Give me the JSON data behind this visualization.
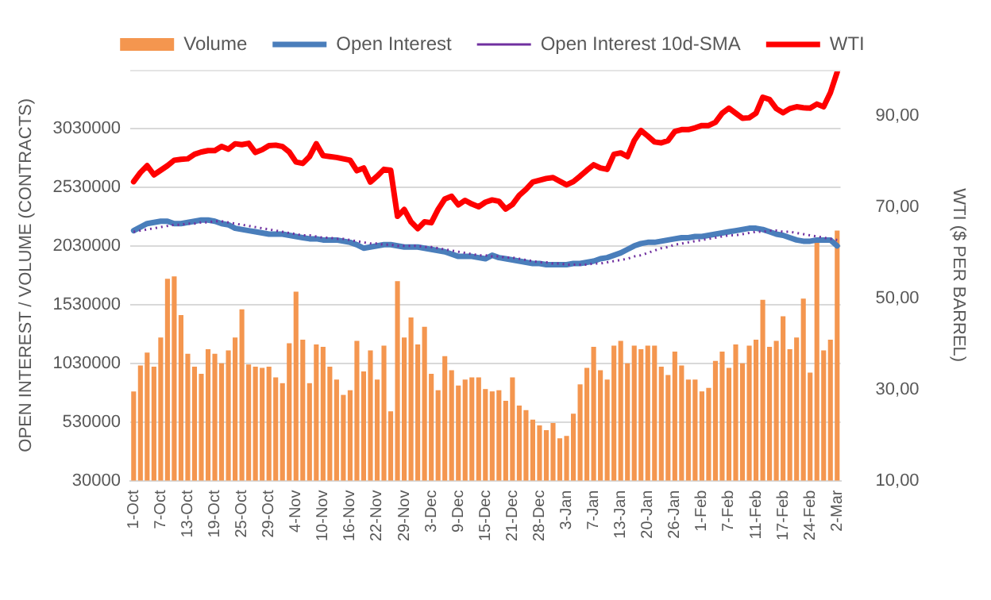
{
  "chart_data": {
    "type": "bar",
    "categories": [
      "1-Oct",
      null,
      null,
      null,
      "7-Oct",
      null,
      null,
      null,
      "13-Oct",
      null,
      null,
      null,
      "19-Oct",
      null,
      null,
      null,
      "25-Oct",
      null,
      null,
      null,
      "29-Oct",
      null,
      null,
      null,
      "4-Nov",
      null,
      null,
      null,
      "10-Nov",
      null,
      null,
      null,
      "16-Nov",
      null,
      null,
      null,
      "22-Nov",
      null,
      null,
      null,
      "29-Nov",
      null,
      null,
      null,
      "3-Dec",
      null,
      null,
      null,
      "9-Dec",
      null,
      null,
      null,
      "15-Dec",
      null,
      null,
      null,
      "21-Dec",
      null,
      null,
      null,
      "28-Dec",
      null,
      null,
      null,
      "3-Jan",
      null,
      null,
      null,
      "7-Jan",
      null,
      null,
      null,
      "13-Jan",
      null,
      null,
      null,
      "20-Jan",
      null,
      null,
      null,
      "26-Jan",
      null,
      null,
      null,
      "1-Feb",
      null,
      null,
      null,
      "7-Feb",
      null,
      null,
      null,
      "11-Feb",
      null,
      null,
      null,
      "17-Feb",
      null,
      null,
      null,
      "24-Feb",
      null,
      null,
      null,
      "2-Mar"
    ],
    "series": [
      {
        "name": "Volume",
        "color": "#f4964f",
        "values": [
          790000,
          1010000,
          1120000,
          1000000,
          1250000,
          1750000,
          1770000,
          1440000,
          1110000,
          1000000,
          940000,
          1150000,
          1110000,
          1030000,
          1140000,
          1250000,
          1490000,
          1020000,
          1000000,
          990000,
          1000000,
          910000,
          860000,
          1200000,
          1640000,
          1230000,
          860000,
          1190000,
          1170000,
          1000000,
          890000,
          760000,
          800000,
          1220000,
          960000,
          1140000,
          890000,
          1180000,
          620000,
          1730000,
          1250000,
          1420000,
          1190000,
          1340000,
          940000,
          800000,
          1090000,
          970000,
          840000,
          890000,
          910000,
          910000,
          810000,
          790000,
          800000,
          710000,
          910000,
          670000,
          630000,
          550000,
          500000,
          460000,
          520000,
          390000,
          410000,
          600000,
          850000,
          990000,
          1170000,
          970000,
          890000,
          1180000,
          1220000,
          1030000,
          1180000,
          1150000,
          1180000,
          1180000,
          1000000,
          930000,
          1130000,
          1010000,
          890000,
          890000,
          790000,
          820000,
          1050000,
          1130000,
          990000,
          1190000,
          1030000,
          1180000,
          1230000,
          1570000,
          1170000,
          1220000,
          1430000,
          1150000,
          1250000,
          1580000,
          950000,
          2080000,
          1140000,
          1230000,
          2160000
        ]
      },
      {
        "name": "Open Interest",
        "type": "line",
        "color": "#4a7ebb",
        "values": [
          2160000,
          2190000,
          2220000,
          2230000,
          2240000,
          2240000,
          2220000,
          2220000,
          2230000,
          2240000,
          2250000,
          2250000,
          2240000,
          2220000,
          2210000,
          2180000,
          2170000,
          2160000,
          2150000,
          2140000,
          2130000,
          2130000,
          2130000,
          2120000,
          2110000,
          2100000,
          2090000,
          2090000,
          2080000,
          2080000,
          2080000,
          2070000,
          2060000,
          2040000,
          2010000,
          2020000,
          2030000,
          2040000,
          2040000,
          2030000,
          2020000,
          2020000,
          2020000,
          2010000,
          2000000,
          1990000,
          1980000,
          1960000,
          1940000,
          1940000,
          1940000,
          1930000,
          1920000,
          1950000,
          1930000,
          1920000,
          1910000,
          1900000,
          1890000,
          1880000,
          1880000,
          1870000,
          1870000,
          1870000,
          1870000,
          1880000,
          1880000,
          1890000,
          1900000,
          1920000,
          1930000,
          1950000,
          1970000,
          2000000,
          2030000,
          2050000,
          2060000,
          2060000,
          2070000,
          2080000,
          2090000,
          2100000,
          2100000,
          2110000,
          2110000,
          2120000,
          2130000,
          2140000,
          2150000,
          2160000,
          2170000,
          2180000,
          2180000,
          2170000,
          2150000,
          2130000,
          2120000,
          2100000,
          2080000,
          2070000,
          2070000,
          2080000,
          2080000,
          2080000,
          2030000
        ]
      },
      {
        "name": "Open Interest 10d-SMA",
        "type": "line",
        "line_style": "dotted",
        "color": "#7030a0",
        "values": [
          2150000,
          2160000,
          2170000,
          2180000,
          2190000,
          2200000,
          2210000,
          2210000,
          2220000,
          2220000,
          2230000,
          2230000,
          2240000,
          2240000,
          2230000,
          2220000,
          2210000,
          2200000,
          2190000,
          2180000,
          2170000,
          2160000,
          2150000,
          2140000,
          2130000,
          2120000,
          2120000,
          2110000,
          2100000,
          2100000,
          2090000,
          2090000,
          2080000,
          2070000,
          2060000,
          2050000,
          2050000,
          2040000,
          2040000,
          2030000,
          2030000,
          2030000,
          2030000,
          2020000,
          2020000,
          2010000,
          2000000,
          1990000,
          1980000,
          1970000,
          1960000,
          1950000,
          1950000,
          1940000,
          1940000,
          1930000,
          1930000,
          1920000,
          1910000,
          1900000,
          1890000,
          1890000,
          1880000,
          1880000,
          1870000,
          1870000,
          1870000,
          1870000,
          1880000,
          1880000,
          1890000,
          1900000,
          1910000,
          1920000,
          1940000,
          1950000,
          1970000,
          1990000,
          2010000,
          2020000,
          2040000,
          2050000,
          2060000,
          2070000,
          2080000,
          2090000,
          2100000,
          2110000,
          2120000,
          2120000,
          2130000,
          2140000,
          2150000,
          2150000,
          2160000,
          2160000,
          2150000,
          2150000,
          2140000,
          2130000,
          2120000,
          2110000,
          2100000,
          2090000,
          2080000
        ]
      },
      {
        "name": "WTI",
        "type": "line",
        "axis": "y2",
        "color": "#ff0000",
        "values": [
          75.5,
          77.5,
          79,
          77,
          78,
          79,
          80.2,
          80.4,
          80.5,
          81.5,
          82,
          82.3,
          82.3,
          83.2,
          82.6,
          83.8,
          83.6,
          83.9,
          81.9,
          82.5,
          83.4,
          83.5,
          83.2,
          82,
          79.8,
          79.5,
          81,
          83.8,
          81.2,
          81,
          80.8,
          80.5,
          80.2,
          77.9,
          78.5,
          75.4,
          76.7,
          78.2,
          78,
          67.9,
          69.4,
          66.7,
          65.2,
          66.7,
          66.5,
          69.4,
          71.7,
          72.3,
          70.4,
          71.4,
          70.6,
          70,
          71,
          71.5,
          71.2,
          69.5,
          70.5,
          72.5,
          73.8,
          75.4,
          75.8,
          76.2,
          76.4,
          75.6,
          74.8,
          75.5,
          76.7,
          78,
          79.2,
          78.5,
          78.2,
          81.5,
          81.8,
          81,
          84.5,
          86.7,
          85.5,
          84.2,
          84,
          84.5,
          86.5,
          86.9,
          86.9,
          87.3,
          87.8,
          87.8,
          88.5,
          90.5,
          91.6,
          90.5,
          89.4,
          89.5,
          90.5,
          94,
          93.5,
          91.5,
          90.6,
          91.5,
          91.9,
          91.7,
          91.6,
          92.5,
          91.9,
          95,
          99.5
        ]
      }
    ],
    "ylabel": "OPEN INTEREST / VOLUME (CONTRACTS)",
    "y2label": "WTI ($ PER BARREL)",
    "ylim": [
      30000,
      3530000
    ],
    "yticks": [
      30000,
      530000,
      1030000,
      1530000,
      2030000,
      2530000,
      3030000
    ],
    "y2lim": [
      10,
      100
    ],
    "y2ticks": [
      {
        "value": 10,
        "label": "10,00"
      },
      {
        "value": 30,
        "label": "30,00"
      },
      {
        "value": 50,
        "label": "50,00"
      },
      {
        "value": 70,
        "label": "70,00"
      },
      {
        "value": 90,
        "label": "90,00"
      }
    ],
    "grid": "y",
    "legend": "top",
    "marker": "none"
  }
}
